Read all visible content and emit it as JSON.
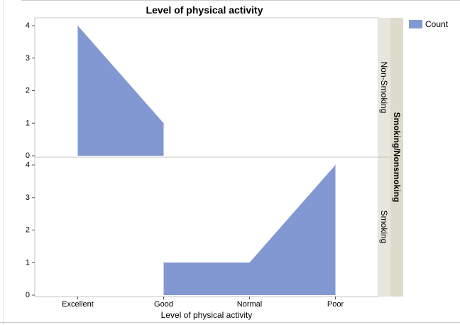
{
  "chart_data": {
    "type": "area",
    "title": "Level of physical activity",
    "xlabel": "Level of physical activity",
    "ylabel": "",
    "categories": [
      "Excellent",
      "Good",
      "Normal",
      "Poor"
    ],
    "facet_title": "Smoking/Nonsmoking",
    "ylim": [
      0,
      4
    ],
    "yticks": [
      "0",
      "1",
      "2",
      "3",
      "4"
    ],
    "grid": false,
    "legend": {
      "position": "top-right",
      "entries": [
        "Count"
      ]
    },
    "color": "#8298d2",
    "panels": [
      {
        "label": "Non-Smoking",
        "series": [
          {
            "name": "Count",
            "values": [
              4,
              1,
              null,
              null
            ]
          }
        ]
      },
      {
        "label": "Smoking",
        "series": [
          {
            "name": "Count",
            "values": [
              null,
              1,
              1,
              4
            ]
          }
        ]
      }
    ]
  }
}
